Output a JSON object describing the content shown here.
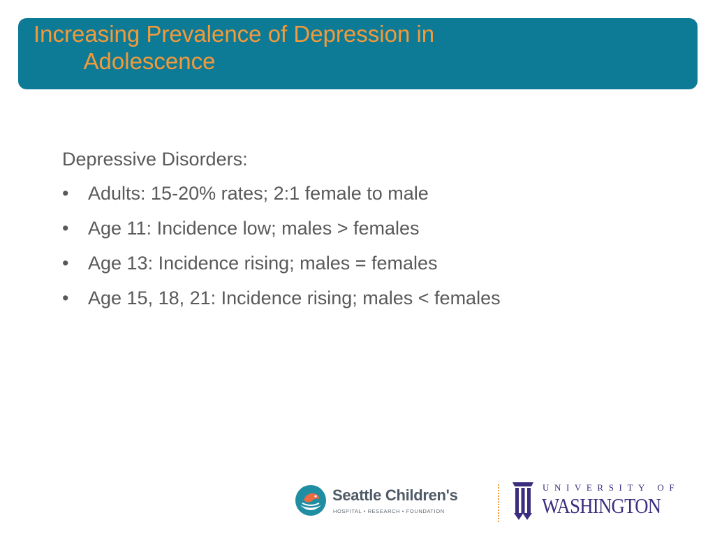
{
  "slide": {
    "title": "Increasing Prevalence of Depression in\n        Adolescence",
    "heading": "Depressive Disorders:",
    "bullet_glyph": "•",
    "bullets": [
      "Adults:  15-20% rates; 2:1 female to male",
      "Age 11: Incidence low; males > females",
      "Age 13: Incidence rising; males = females",
      "Age 15, 18, 21: Incidence rising; males < females"
    ]
  },
  "footer": {
    "seattle_childrens": {
      "name": "Seattle Children's",
      "subtitle": "HOSPITAL • RESEARCH • FOUNDATION"
    },
    "uw": {
      "top": "UNIVERSITY OF",
      "bottom": "WASHINGTON"
    }
  },
  "colors": {
    "title_bar": "#0e7b96",
    "title_text": "#f39a3a",
    "body_text": "#595959",
    "uw_purple": "#3b2e7e",
    "sch_teal": "#1f8ea3"
  }
}
